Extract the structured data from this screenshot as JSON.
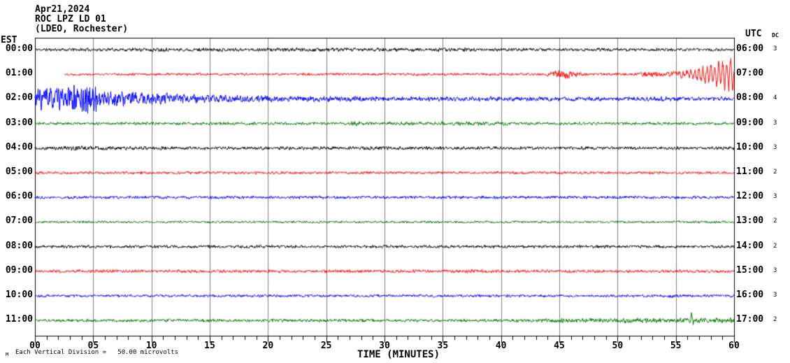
{
  "header": {
    "date": "Apr21,2024",
    "station": "ROC LPZ LD 01",
    "location": "(LDEO, Rochester)"
  },
  "axes": {
    "left_label": "EST",
    "right_label": "UTC",
    "dc_label": "DC",
    "x_title": "TIME (MINUTES)",
    "x_ticks": [
      "00",
      "05",
      "10",
      "15",
      "20",
      "25",
      "30",
      "35",
      "40",
      "45",
      "50",
      "55",
      "60"
    ],
    "x_major_tick_minutes": 5,
    "x_minor_tick_minutes": 1
  },
  "footer": {
    "tiny_label": "M",
    "scale_note": "Each Vertical Division =   50.00 microvolts"
  },
  "colors": {
    "black": "#000000",
    "red": "#ff0000",
    "blue": "#0000ff",
    "green": "#007700",
    "grid": "#7d7d7d",
    "frame": "#000000",
    "bg": "#ffffff"
  },
  "chart_data": {
    "type": "line",
    "title": "ROC LPZ LD 01 helicorder (LDEO, Rochester) Apr21,2024",
    "x_range_minutes": [
      0,
      60
    ],
    "minutes_per_row": 60,
    "vertical_division_microvolts": 50.0,
    "rows": [
      {
        "est": "00:00",
        "utc": "06:00",
        "dc": "3",
        "color": "black",
        "start_min": 0,
        "seed": 11,
        "envelope": [
          [
            0,
            2
          ],
          [
            8,
            2.2
          ],
          [
            10,
            2.8
          ],
          [
            12,
            2.2
          ],
          [
            29,
            2.5
          ],
          [
            33,
            2.2
          ],
          [
            36,
            2.5
          ],
          [
            38,
            2.1
          ],
          [
            60,
            2
          ]
        ],
        "spikes": []
      },
      {
        "est": "01:00",
        "utc": "07:00",
        "dc": "",
        "color": "red",
        "start_min": 2.55,
        "seed": 22,
        "envelope": [
          [
            2.55,
            1.7
          ],
          [
            20,
            1.8
          ],
          [
            43.5,
            1.8
          ],
          [
            44.5,
            4.5
          ],
          [
            45.5,
            6
          ],
          [
            46.5,
            3.2
          ],
          [
            47.5,
            2
          ],
          [
            51.5,
            2
          ],
          [
            53,
            3.5
          ],
          [
            54,
            3
          ],
          [
            55,
            4
          ],
          [
            56,
            4.5
          ],
          [
            60,
            5
          ]
        ],
        "osc": {
          "start": 55.2,
          "end": 60,
          "period": 0.34,
          "amp_start": 3,
          "amp_end": 19
        },
        "spikes": []
      },
      {
        "est": "02:00",
        "utc": "08:00",
        "dc": "4",
        "color": "blue",
        "start_min": 0,
        "seed": 33,
        "envelope": [
          [
            0,
            13
          ],
          [
            0.7,
            17
          ],
          [
            1.5,
            15
          ],
          [
            2.5,
            13
          ],
          [
            3.8,
            18
          ],
          [
            4.7,
            23
          ],
          [
            5.3,
            17
          ],
          [
            6,
            13
          ],
          [
            7,
            11
          ],
          [
            8,
            9.5
          ],
          [
            9,
            8.5
          ],
          [
            10,
            7.5
          ],
          [
            10.8,
            8.5
          ],
          [
            12,
            7
          ],
          [
            13,
            6
          ],
          [
            14.5,
            5.5
          ],
          [
            16,
            5
          ],
          [
            18,
            4.5
          ],
          [
            20,
            4.5
          ],
          [
            22,
            4
          ],
          [
            25,
            3.5
          ],
          [
            28,
            3.2
          ],
          [
            32,
            3
          ],
          [
            40,
            3
          ],
          [
            47,
            2.8
          ],
          [
            60,
            2.8
          ]
        ],
        "spikes": []
      },
      {
        "est": "03:00",
        "utc": "09:00",
        "dc": "3",
        "color": "green",
        "start_min": 0,
        "seed": 44,
        "envelope": [
          [
            0,
            1.9
          ],
          [
            26.5,
            2
          ],
          [
            27.4,
            3.4
          ],
          [
            28.2,
            2
          ],
          [
            40.5,
            2.8
          ],
          [
            41.5,
            2
          ],
          [
            60,
            1.9
          ]
        ],
        "spikes": []
      },
      {
        "est": "04:00",
        "utc": "10:00",
        "dc": "3",
        "color": "black",
        "start_min": 0,
        "seed": 55,
        "envelope": [
          [
            0,
            2.1
          ],
          [
            3,
            2.9
          ],
          [
            7,
            2.7
          ],
          [
            9,
            2.2
          ],
          [
            60,
            2.1
          ]
        ],
        "spikes": []
      },
      {
        "est": "05:00",
        "utc": "11:00",
        "dc": "2",
        "color": "red",
        "start_min": 0,
        "seed": 66,
        "envelope": [
          [
            0,
            1.8
          ],
          [
            60,
            1.8
          ]
        ],
        "spikes": []
      },
      {
        "est": "06:00",
        "utc": "12:00",
        "dc": "3",
        "color": "blue",
        "start_min": 0,
        "seed": 77,
        "envelope": [
          [
            0,
            2
          ],
          [
            60,
            2
          ]
        ],
        "spikes": []
      },
      {
        "est": "07:00",
        "utc": "13:00",
        "dc": "2",
        "color": "green",
        "start_min": 0,
        "seed": 88,
        "envelope": [
          [
            0,
            1.6
          ],
          [
            60,
            1.6
          ]
        ],
        "spikes": []
      },
      {
        "est": "08:00",
        "utc": "14:00",
        "dc": "2",
        "color": "black",
        "start_min": 0,
        "seed": 99,
        "envelope": [
          [
            0,
            2
          ],
          [
            60,
            2
          ]
        ],
        "spikes": []
      },
      {
        "est": "09:00",
        "utc": "15:00",
        "dc": "3",
        "color": "red",
        "start_min": 0,
        "seed": 111,
        "envelope": [
          [
            0,
            2
          ],
          [
            36.8,
            2
          ],
          [
            37.5,
            3.4
          ],
          [
            38.6,
            2
          ],
          [
            60,
            2
          ]
        ],
        "spikes": []
      },
      {
        "est": "10:00",
        "utc": "16:00",
        "dc": "3",
        "color": "blue",
        "start_min": 0,
        "seed": 122,
        "envelope": [
          [
            0,
            1.8
          ],
          [
            53.5,
            1.8
          ],
          [
            54.8,
            2.6
          ],
          [
            56.2,
            1.8
          ],
          [
            60,
            1.8
          ]
        ],
        "spikes": []
      },
      {
        "est": "11:00",
        "utc": "17:00",
        "dc": "2",
        "color": "green",
        "start_min": 0,
        "seed": 133,
        "envelope": [
          [
            0,
            2
          ],
          [
            40,
            2
          ],
          [
            43,
            2.6
          ],
          [
            49,
            2.8
          ],
          [
            50,
            3.2
          ],
          [
            60,
            3.2
          ]
        ],
        "spikes": [
          {
            "t": 56.35,
            "up": 11,
            "down": 6
          }
        ]
      }
    ]
  }
}
